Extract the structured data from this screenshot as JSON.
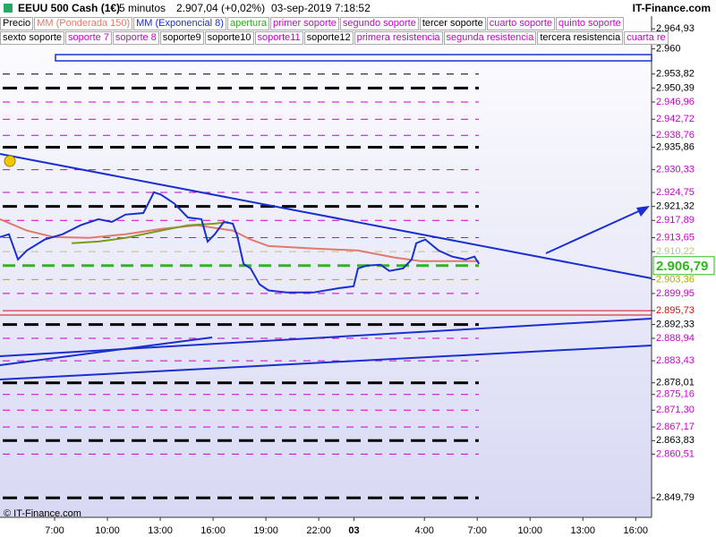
{
  "chart_data": {
    "type": "line",
    "header": {
      "instrument": "EEUU 500 Cash (1€)",
      "interval": "5 minutos",
      "price": "2.907,04 (+0,02%)",
      "datetime": "03-sep-2019 7:18:52",
      "brand": "IT-Finance.com"
    },
    "footer": "© IT-Finance.com",
    "legend_rows": [
      [
        {
          "text": "Precio",
          "color": "#000000"
        },
        {
          "text": "MM (Ponderada 150)",
          "color": "#e07a6a"
        },
        {
          "text": "MM (Exponencial 8)",
          "color": "#1a2fd0"
        },
        {
          "text": "apertura",
          "color": "#2eaa1e"
        },
        {
          "text": "primer soporte",
          "color": "#c800c8"
        },
        {
          "text": "segundo soporte",
          "color": "#c800c8"
        },
        {
          "text": "tercer soporte",
          "color": "#000000"
        },
        {
          "text": "cuarto soporte",
          "color": "#c800c8"
        },
        {
          "text": "quinto soporte",
          "color": "#c800c8"
        }
      ],
      [
        {
          "text": "sexto soporte",
          "color": "#000000"
        },
        {
          "text": "soporte 7",
          "color": "#c800c8"
        },
        {
          "text": "soporte 8",
          "color": "#c800c8"
        },
        {
          "text": "soporte9",
          "color": "#000000"
        },
        {
          "text": "soporte10",
          "color": "#000000"
        },
        {
          "text": "soporte11",
          "color": "#c800c8"
        },
        {
          "text": "soporte12",
          "color": "#000000"
        },
        {
          "text": "primera resistencia",
          "color": "#c800c8"
        },
        {
          "text": "segunda resistencia",
          "color": "#c800c8"
        },
        {
          "text": "tercera resistencia",
          "color": "#000000"
        },
        {
          "text": "cuarta re",
          "color": "#c800c8"
        }
      ]
    ],
    "xlim": [
      3.9,
      40.9
    ],
    "xticks": [
      {
        "value": 7,
        "label": "7:00"
      },
      {
        "value": 10,
        "label": "10:00"
      },
      {
        "value": 13,
        "label": "13:00"
      },
      {
        "value": 16,
        "label": "16:00"
      },
      {
        "value": 19,
        "label": "19:00"
      },
      {
        "value": 22,
        "label": "22:00"
      },
      {
        "value": 24,
        "label": "03"
      },
      {
        "value": 28,
        "label": "4:00"
      },
      {
        "value": 31,
        "label": "7:00"
      },
      {
        "value": 34,
        "label": "10:00"
      },
      {
        "value": 37,
        "label": "13:00"
      },
      {
        "value": 40,
        "label": "16:00"
      }
    ],
    "ylim": [
      2.845,
      2.972
    ],
    "yticks": [
      {
        "value": 2.96493,
        "label": "2.964,93"
      },
      {
        "value": 2.96,
        "label": "2.960"
      },
      {
        "value": 2.95382,
        "label": "2.953,82"
      },
      {
        "value": 2.95039,
        "label": "2.950,39"
      },
      {
        "value": 2.94696,
        "label": "2.946,96"
      },
      {
        "value": 2.94272,
        "label": "2.942,72"
      },
      {
        "value": 2.93876,
        "label": "2.938,76"
      },
      {
        "value": 2.93586,
        "label": "2.935,86"
      },
      {
        "value": 2.93033,
        "label": "2.930,33"
      },
      {
        "value": 2.92475,
        "label": "2.924,75"
      },
      {
        "value": 2.92132,
        "label": "2.921,32"
      },
      {
        "value": 2.91789,
        "label": "2.917,89"
      },
      {
        "value": 2.91365,
        "label": "2.913,65"
      },
      {
        "value": 2.91022,
        "label": "2.910,22"
      },
      {
        "value": 2.90336,
        "label": "2.903,36"
      },
      {
        "value": 2.89995,
        "label": "2.899,95"
      },
      {
        "value": 2.89573,
        "label": "2.895,73"
      },
      {
        "value": 2.89233,
        "label": "2.892,33"
      },
      {
        "value": 2.88894,
        "label": "2.888,94"
      },
      {
        "value": 2.88343,
        "label": "2.883,43"
      },
      {
        "value": 2.87801,
        "label": "2.878,01"
      },
      {
        "value": 2.87516,
        "label": "2.875,16"
      },
      {
        "value": 2.8713,
        "label": "2.871,30"
      },
      {
        "value": 2.86717,
        "label": "2.867,17"
      },
      {
        "value": 2.86383,
        "label": "2.863,83"
      },
      {
        "value": 2.86051,
        "label": "2.860,51"
      },
      {
        "value": 2.84979,
        "label": "2.849,79"
      }
    ],
    "ytick_colors": [
      "#000000",
      "#000000",
      "#000000",
      "#000000",
      "#c800c8",
      "#c800c8",
      "#c800c8",
      "#000000",
      "#c800c8",
      "#c800c8",
      "#000000",
      "#c800c8",
      "#c800c8",
      "#b8c870",
      "#b0a800",
      "#c800c8",
      "#d01010",
      "#000000",
      "#c800c8",
      "#c800c8",
      "#000000",
      "#c800c8",
      "#c800c8",
      "#c800c8",
      "#000000",
      "#c800c8",
      "#000000"
    ],
    "ytick_dash": [
      "none",
      "none",
      "thin",
      "thick",
      "thin",
      "thin",
      "thin",
      "thick",
      "thin",
      "thin",
      "thick",
      "thin",
      "thin",
      "thin",
      "thin",
      "thin",
      "solid",
      "thick",
      "thin",
      "thin",
      "thick",
      "thin",
      "thin",
      "thin",
      "thick",
      "thin",
      "thick"
    ],
    "current_price": {
      "value": 2.90679,
      "label": "2.906,79",
      "color": "#2eb81e"
    },
    "series": [
      {
        "color": "#e07a6a",
        "x": [
          3.9,
          5.42,
          6.95,
          8.98,
          11.02,
          13.05,
          15.08,
          17.12,
          18.13,
          19.15,
          21.69,
          24.23,
          26.27,
          27.79,
          29.32,
          31.1
        ],
        "values": [
          2.9182,
          2.9154,
          2.9138,
          2.9136,
          2.9145,
          2.9158,
          2.9167,
          2.9154,
          2.9132,
          2.9116,
          2.911,
          2.9105,
          2.9088,
          2.9079,
          2.9079,
          2.9079
        ]
      },
      {
        "color": "#7a9a20",
        "x": [
          7.97,
          9.49,
          11.02,
          13.05,
          14.57,
          16.1,
          16.86
        ],
        "values": [
          2.9123,
          2.9127,
          2.9136,
          2.9154,
          2.9167,
          2.9171,
          2.9175
        ]
      },
      {
        "color": "#1a2fd0",
        "x": [
          3.9,
          4.41,
          4.92,
          5.42,
          6.44,
          7.46,
          8.47,
          9.49,
          10.25,
          11.02,
          12.04,
          12.64,
          13.05,
          13.81,
          14.57,
          15.34,
          15.69,
          16.1,
          16.61,
          17.12,
          17.37,
          17.73,
          18.13,
          18.64,
          19.15,
          20.17,
          21.69,
          23.22,
          23.98,
          24.23,
          24.74,
          25.51,
          26.01,
          26.78,
          27.28,
          27.54,
          28.05,
          28.81,
          29.57,
          30.34,
          30.84,
          31.1
        ],
        "values": [
          2.9138,
          2.9145,
          2.9083,
          2.9105,
          2.9132,
          2.9145,
          2.9167,
          2.9182,
          2.9175,
          2.9193,
          2.9197,
          2.9248,
          2.9242,
          2.922,
          2.9186,
          2.9182,
          2.9127,
          2.9145,
          2.9175,
          2.9171,
          2.9142,
          2.9072,
          2.9061,
          2.9022,
          2.9007,
          2.9002,
          2.9002,
          2.9013,
          2.9017,
          2.9061,
          2.9068,
          2.907,
          2.9055,
          2.9061,
          2.9083,
          2.9123,
          2.9132,
          2.9105,
          2.909,
          2.9083,
          2.909,
          2.9072
        ]
      }
    ]
  }
}
